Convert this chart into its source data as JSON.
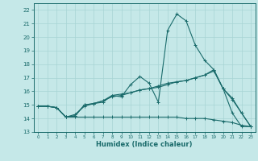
{
  "xlabel": "Humidex (Indice chaleur)",
  "xlim": [
    -0.5,
    23.5
  ],
  "ylim": [
    13,
    22.5
  ],
  "yticks": [
    13,
    14,
    15,
    16,
    17,
    18,
    19,
    20,
    21,
    22
  ],
  "xticks": [
    0,
    1,
    2,
    3,
    4,
    5,
    6,
    7,
    8,
    9,
    10,
    11,
    12,
    13,
    14,
    15,
    16,
    17,
    18,
    19,
    20,
    21,
    22,
    23
  ],
  "bg_color": "#c5e8e8",
  "line_color": "#1a6b6b",
  "grid_color": "#a8d4d4",
  "series": [
    [
      14.9,
      14.9,
      14.8,
      14.1,
      14.2,
      15.0,
      15.1,
      15.2,
      15.7,
      15.6,
      16.5,
      17.1,
      16.6,
      15.2,
      20.5,
      21.7,
      21.2,
      19.4,
      18.3,
      17.6,
      16.2,
      14.4,
      13.4,
      13.4
    ],
    [
      14.9,
      14.9,
      14.8,
      14.1,
      14.2,
      15.0,
      15.1,
      15.3,
      15.7,
      15.8,
      15.9,
      16.1,
      16.2,
      16.3,
      16.5,
      16.7,
      16.8,
      17.0,
      17.2,
      17.6,
      16.2,
      15.5,
      14.4,
      13.4
    ],
    [
      14.9,
      14.9,
      14.8,
      14.1,
      14.3,
      14.9,
      15.1,
      15.3,
      15.6,
      15.7,
      15.9,
      16.1,
      16.2,
      16.4,
      16.6,
      16.7,
      16.8,
      17.0,
      17.2,
      17.5,
      16.2,
      15.4,
      14.4,
      13.4
    ],
    [
      14.9,
      14.9,
      14.8,
      14.1,
      14.1,
      14.1,
      14.1,
      14.1,
      14.1,
      14.1,
      14.1,
      14.1,
      14.1,
      14.1,
      14.1,
      14.1,
      14.0,
      14.0,
      14.0,
      13.9,
      13.8,
      13.7,
      13.5,
      13.4
    ]
  ]
}
